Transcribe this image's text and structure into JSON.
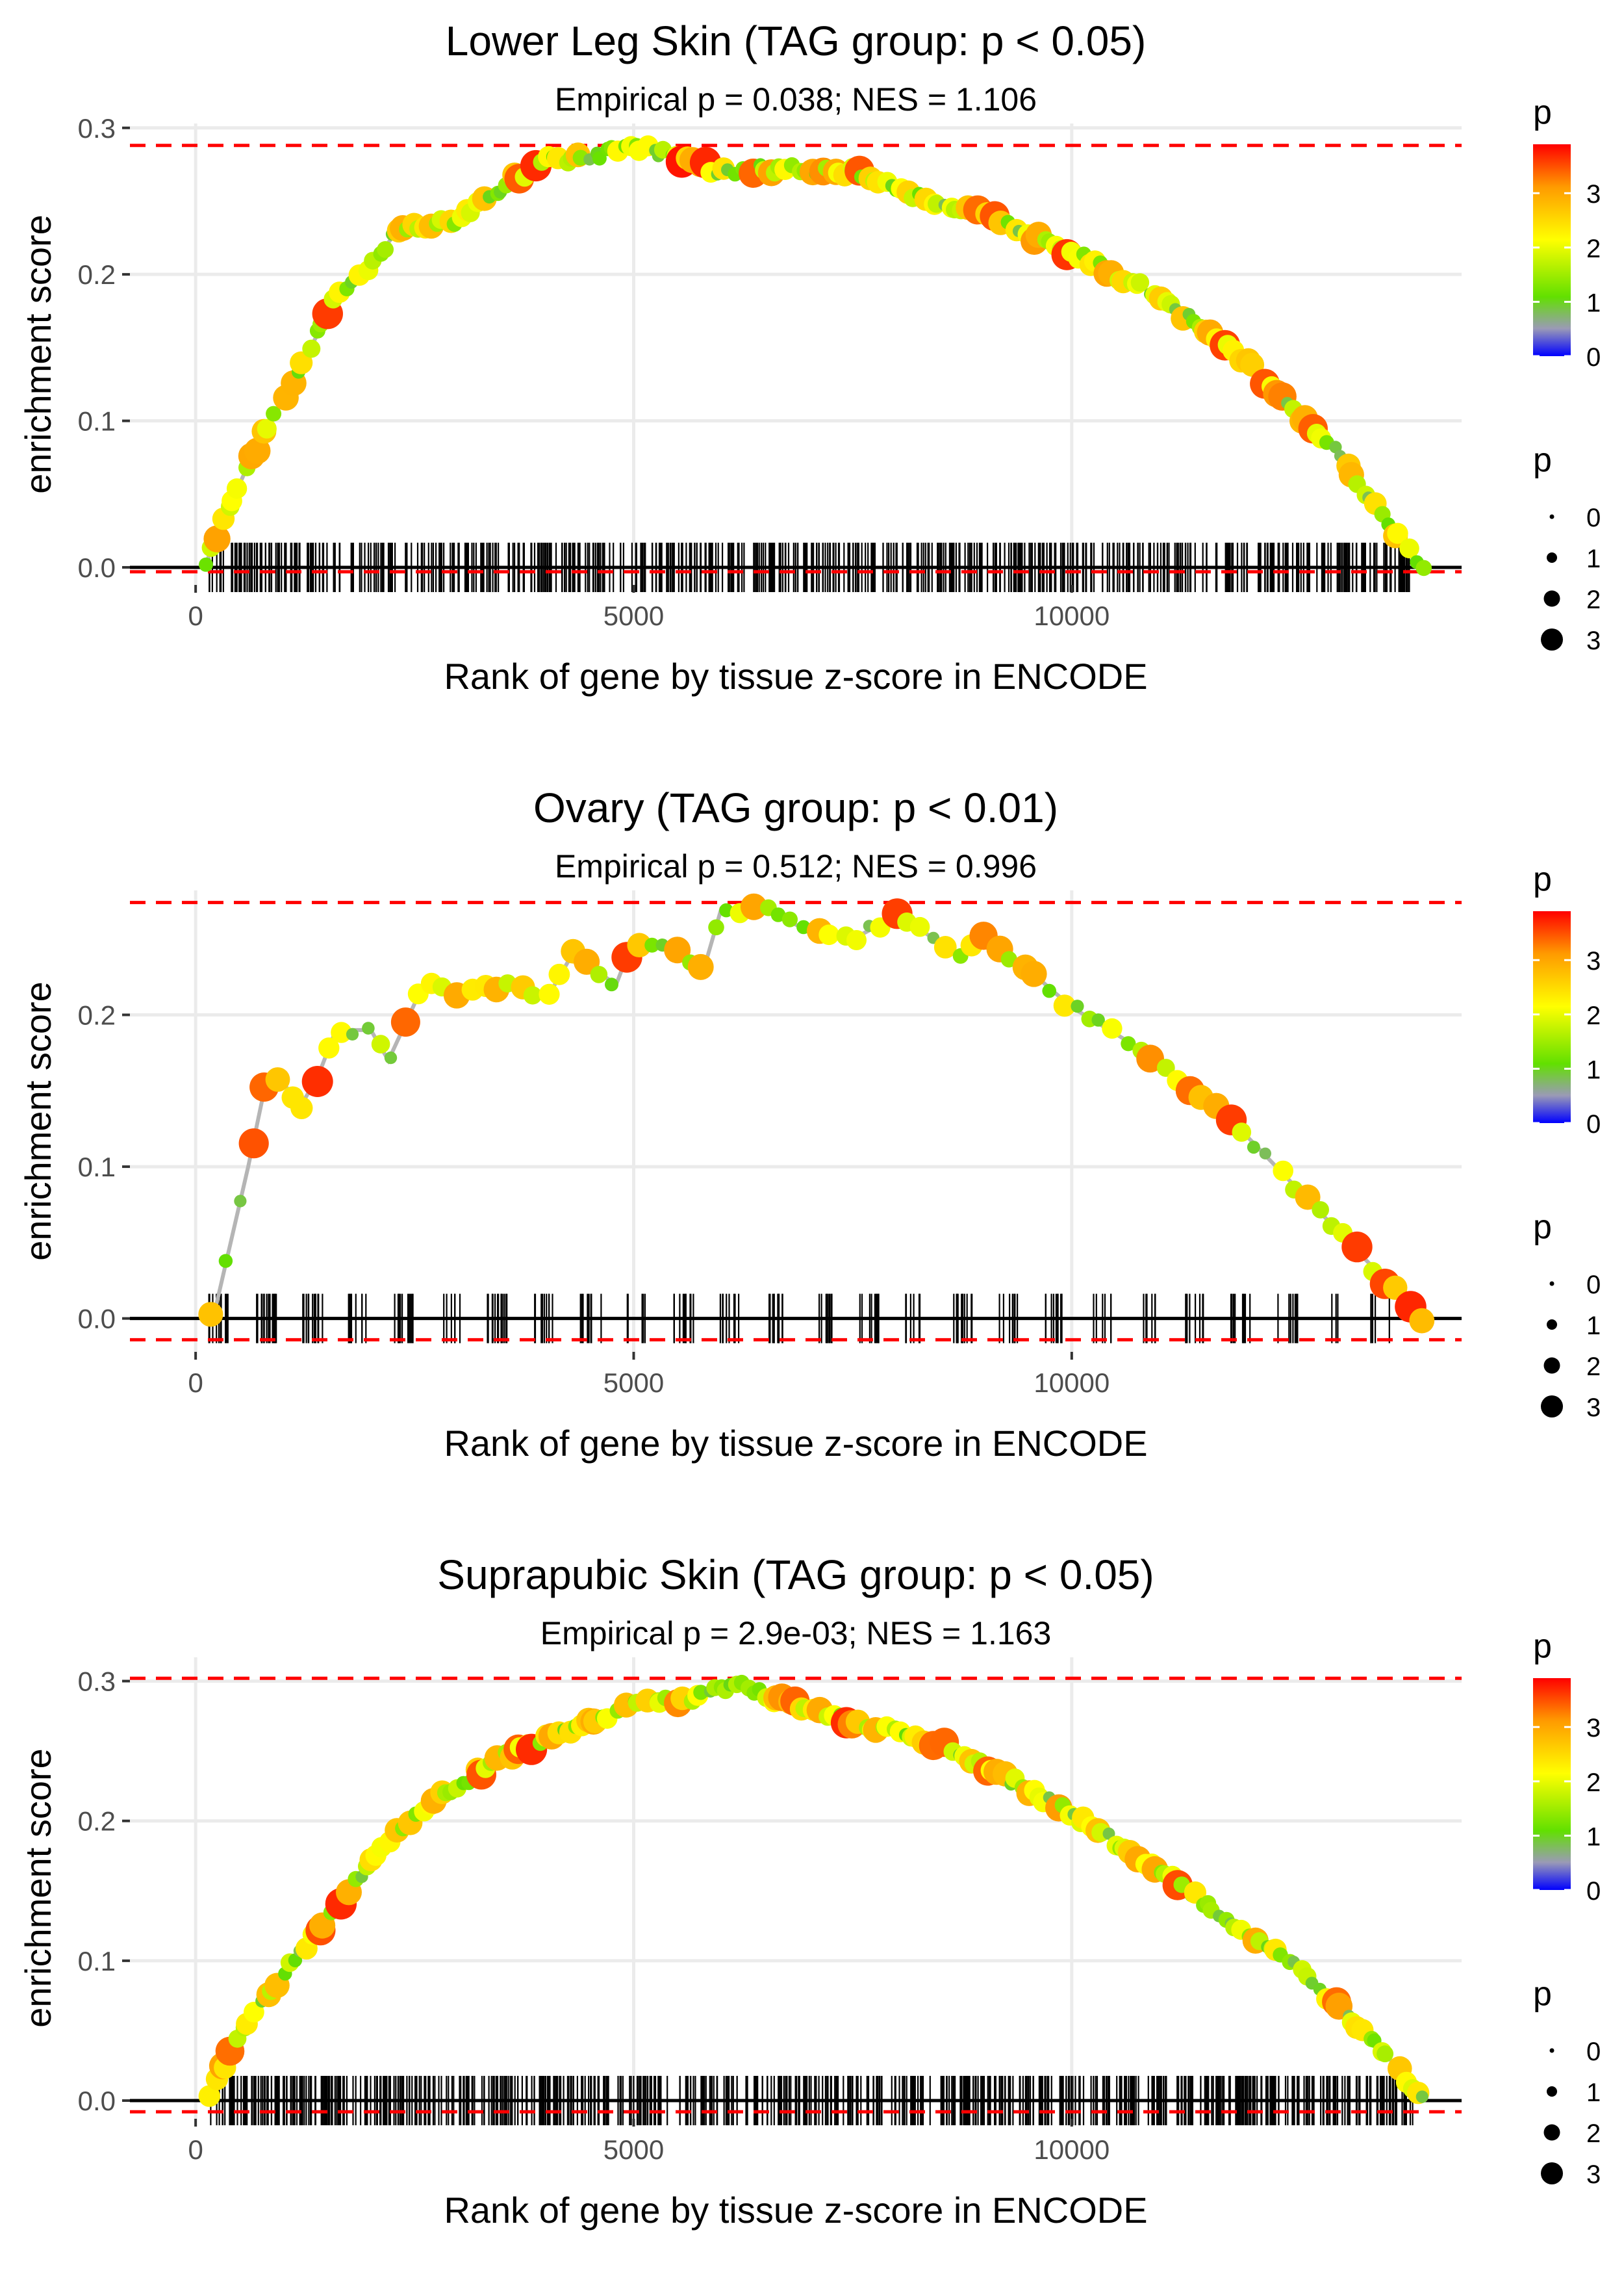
{
  "chart_data": [
    {
      "type": "line",
      "title": "Lower Leg Skin (TAG group: p < 0.05)",
      "subtitle": "Empirical p = 0.038; NES = 1.106",
      "xlabel": "Rank of gene by tissue z-score in ENCODE",
      "ylabel": "enrichment score",
      "xlim": [
        -750,
        14450
      ],
      "ylim": [
        -0.012,
        0.303
      ],
      "x_ticks": [
        0,
        5000,
        10000
      ],
      "x_tick_labels": [
        "0",
        "5000",
        "10000"
      ],
      "y_ticks": [
        0.0,
        0.1,
        0.2,
        0.3
      ],
      "y_tick_labels": [
        "0.0",
        "0.1",
        "0.2",
        "0.3"
      ],
      "max_es": 0.288,
      "min_es": -0.003,
      "n_genes": 14000,
      "rug_count": 600,
      "seed": 11,
      "curve": [
        [
          100,
          0.0
        ],
        [
          300,
          0.03
        ],
        [
          600,
          0.07
        ],
        [
          1000,
          0.115
        ],
        [
          1400,
          0.16
        ],
        [
          1600,
          0.185
        ],
        [
          2000,
          0.205
        ],
        [
          2300,
          0.23
        ],
        [
          3000,
          0.237
        ],
        [
          3500,
          0.26
        ],
        [
          4000,
          0.278
        ],
        [
          4500,
          0.28
        ],
        [
          5000,
          0.288
        ],
        [
          5500,
          0.28
        ],
        [
          6000,
          0.27
        ],
        [
          6500,
          0.272
        ],
        [
          7000,
          0.272
        ],
        [
          7500,
          0.27
        ],
        [
          8000,
          0.258
        ],
        [
          9000,
          0.24
        ],
        [
          10000,
          0.215
        ],
        [
          11000,
          0.185
        ],
        [
          12000,
          0.14
        ],
        [
          13000,
          0.08
        ],
        [
          13500,
          0.04
        ],
        [
          14000,
          0.0
        ]
      ],
      "legend": {
        "color_title": "p",
        "color_ticks": [
          "0",
          "1",
          "2",
          "3"
        ],
        "size_title": "p",
        "size_labels": [
          "0",
          "1",
          "2",
          "3"
        ]
      }
    },
    {
      "type": "line",
      "title": "Ovary (TAG group: p < 0.01)",
      "subtitle": "Empirical p = 0.512; NES = 0.996",
      "xlabel": "Rank of gene by tissue z-score in ENCODE",
      "ylabel": "enrichment score",
      "xlim": [
        -750,
        14450
      ],
      "ylim": [
        -0.022,
        0.282
      ],
      "x_ticks": [
        0,
        5000,
        10000
      ],
      "x_tick_labels": [
        "0",
        "5000",
        "10000"
      ],
      "y_ticks": [
        0.0,
        0.1,
        0.2
      ],
      "y_tick_labels": [
        "0.0",
        "0.1",
        "0.2"
      ],
      "max_es": 0.274,
      "min_es": -0.014,
      "n_genes": 14000,
      "rug_count": 230,
      "seed": 23,
      "curve": [
        [
          200,
          0.0
        ],
        [
          400,
          0.05
        ],
        [
          600,
          0.1
        ],
        [
          800,
          0.155
        ],
        [
          1000,
          0.155
        ],
        [
          1200,
          0.14
        ],
        [
          1400,
          0.16
        ],
        [
          1600,
          0.19
        ],
        [
          2000,
          0.19
        ],
        [
          2200,
          0.17
        ],
        [
          2600,
          0.22
        ],
        [
          3000,
          0.215
        ],
        [
          3500,
          0.22
        ],
        [
          4000,
          0.21
        ],
        [
          4300,
          0.24
        ],
        [
          4800,
          0.22
        ],
        [
          5000,
          0.25
        ],
        [
          5500,
          0.24
        ],
        [
          5800,
          0.23
        ],
        [
          6000,
          0.27
        ],
        [
          6500,
          0.27
        ],
        [
          7000,
          0.255
        ],
        [
          7500,
          0.25
        ],
        [
          8000,
          0.265
        ],
        [
          8300,
          0.255
        ],
        [
          8700,
          0.24
        ],
        [
          9000,
          0.25
        ],
        [
          9500,
          0.23
        ],
        [
          10000,
          0.205
        ],
        [
          11000,
          0.17
        ],
        [
          12000,
          0.12
        ],
        [
          13000,
          0.06
        ],
        [
          13500,
          0.03
        ],
        [
          14000,
          0.0
        ]
      ],
      "legend": {
        "color_title": "p",
        "color_ticks": [
          "0",
          "1",
          "2",
          "3"
        ],
        "size_title": "p",
        "size_labels": [
          "0",
          "1",
          "2",
          "3"
        ]
      }
    },
    {
      "type": "line",
      "title": "Suprapubic Skin (TAG group: p < 0.05)",
      "subtitle": "Empirical p = 2.9e-03; NES = 1.163",
      "xlabel": "Rank of gene by tissue z-score in ENCODE",
      "ylabel": "enrichment score",
      "xlim": [
        -750,
        14450
      ],
      "ylim": [
        -0.013,
        0.317
      ],
      "x_ticks": [
        0,
        5000,
        10000
      ],
      "x_tick_labels": [
        "0",
        "5000",
        "10000"
      ],
      "y_ticks": [
        0.0,
        0.1,
        0.2,
        0.3
      ],
      "y_tick_labels": [
        "0.0",
        "0.1",
        "0.2",
        "0.3"
      ],
      "max_es": 0.302,
      "min_es": -0.008,
      "n_genes": 14000,
      "rug_count": 700,
      "seed": 37,
      "curve": [
        [
          150,
          0.0
        ],
        [
          500,
          0.05
        ],
        [
          1000,
          0.09
        ],
        [
          1500,
          0.13
        ],
        [
          2000,
          0.17
        ],
        [
          2500,
          0.205
        ],
        [
          3000,
          0.225
        ],
        [
          3500,
          0.245
        ],
        [
          4000,
          0.258
        ],
        [
          4500,
          0.27
        ],
        [
          5000,
          0.285
        ],
        [
          5500,
          0.285
        ],
        [
          6000,
          0.295
        ],
        [
          6200,
          0.3
        ],
        [
          6500,
          0.29
        ],
        [
          7000,
          0.28
        ],
        [
          7500,
          0.27
        ],
        [
          8000,
          0.265
        ],
        [
          8500,
          0.255
        ],
        [
          9000,
          0.24
        ],
        [
          10000,
          0.205
        ],
        [
          10500,
          0.185
        ],
        [
          11000,
          0.165
        ],
        [
          12000,
          0.12
        ],
        [
          12500,
          0.1
        ],
        [
          13000,
          0.07
        ],
        [
          13500,
          0.04
        ],
        [
          14000,
          0.0
        ]
      ],
      "legend": {
        "color_title": "p",
        "color_ticks": [
          "0",
          "1",
          "2",
          "3"
        ],
        "size_title": "p",
        "size_labels": [
          "0",
          "1",
          "2",
          "3"
        ]
      }
    }
  ]
}
